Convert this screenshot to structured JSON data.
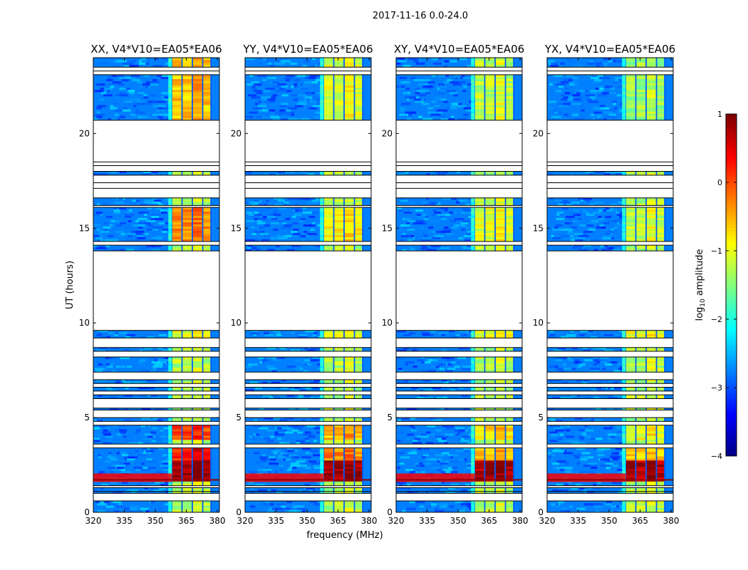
{
  "chart_data": {
    "type": "heatmap",
    "title": "2017-11-16 0.0-24.0",
    "xlabel": "frequency (MHz)",
    "ylabel": "UT (hours)",
    "xlim": [
      320,
      381
    ],
    "ylim": [
      0,
      24
    ],
    "x_ticks": [
      "320",
      "335",
      "350",
      "365",
      "380"
    ],
    "x_tick_values": [
      320,
      335,
      350,
      365,
      380
    ],
    "y_ticks": [
      "0",
      "5",
      "10",
      "15",
      "20"
    ],
    "y_tick_values": [
      0,
      5,
      10,
      15,
      20
    ],
    "colorbar": {
      "label": "log10 amplitude",
      "label_main": "log",
      "label_sub": "10",
      "label_rest": " amplitude",
      "range": [
        -4,
        1
      ],
      "ticks": [
        "1",
        "0",
        "−1",
        "−2",
        "−3",
        "−4"
      ],
      "tick_values": [
        1,
        0,
        -1,
        -2,
        -3,
        -4
      ],
      "colormap": "jet"
    },
    "panels": [
      {
        "title": "XX, V4*V10=EA05*EA06",
        "strong_scale": 1.0
      },
      {
        "title": "YY, V4*V10=EA05*EA06",
        "strong_scale": 0.85
      },
      {
        "title": "XY, V4*V10=EA05*EA06",
        "strong_scale": 0.8
      },
      {
        "title": "YX, V4*V10=EA05*EA06",
        "strong_scale": 0.75
      }
    ],
    "data_time_bands_hours": [
      [
        0.0,
        0.6
      ],
      [
        1.0,
        1.3
      ],
      [
        1.4,
        3.4
      ],
      [
        3.6,
        4.6
      ],
      [
        4.8,
        5.0
      ],
      [
        5.4,
        5.5
      ],
      [
        6.0,
        6.2
      ],
      [
        6.4,
        6.6
      ],
      [
        6.8,
        7.0
      ],
      [
        7.4,
        8.2
      ],
      [
        8.5,
        8.7
      ],
      [
        9.2,
        9.6
      ],
      [
        13.8,
        14.1
      ],
      [
        14.3,
        16.1
      ],
      [
        16.2,
        16.6
      ],
      [
        17.8,
        18.0
      ],
      [
        20.7,
        23.1
      ],
      [
        23.5,
        24.0
      ]
    ],
    "rfi_band_mhz": [
      358,
      378
    ],
    "rfi_channels_mhz": [
      358,
      363,
      368,
      373,
      377
    ]
  }
}
